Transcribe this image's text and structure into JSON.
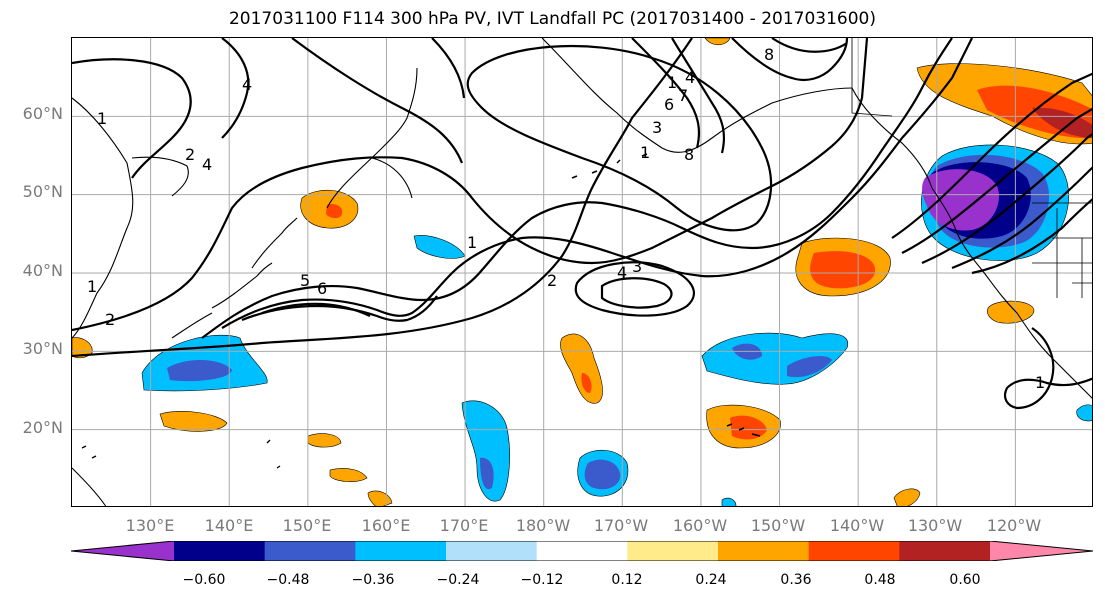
{
  "title": "2017031100 F114 300 hPa PV, IVT Landfall PC (2017031400 - 2017031600)",
  "lat_labels": [
    "60°N",
    "50°N",
    "40°N",
    "30°N",
    "20°N"
  ],
  "lon_labels": [
    "130°E",
    "140°E",
    "150°E",
    "160°E",
    "170°E",
    "180°W",
    "170°W",
    "160°W",
    "150°W",
    "140°W",
    "130°W",
    "120°W"
  ],
  "contour_labels": [
    "1",
    "1",
    "1",
    "1",
    "1",
    "1",
    "2",
    "2",
    "2",
    "3",
    "3",
    "4",
    "4",
    "4",
    "4",
    "5",
    "6",
    "6",
    "7",
    "8",
    "8"
  ],
  "colorbar": {
    "tick_labels": [
      "−0.60",
      "−0.48",
      "−0.36",
      "−0.24",
      "−0.12",
      "0.12",
      "0.24",
      "0.36",
      "0.48",
      "0.60"
    ],
    "colors": [
      "#9932CC",
      "#00008B",
      "#3B5BCC",
      "#00BFFF",
      "#B0E0FA",
      "#FFFFFF",
      "#FFEB8A",
      "#FFA500",
      "#FF4500",
      "#B22222",
      "#FF88AA"
    ]
  },
  "map_data": {
    "extent": {
      "lon_min": 120,
      "lon_max": 250,
      "lat_min": 10,
      "lat_max": 70
    },
    "grid_lons": [
      130,
      140,
      150,
      160,
      170,
      180,
      190,
      200,
      210,
      220,
      230,
      240
    ],
    "grid_lats": [
      20,
      30,
      40,
      50,
      60
    ],
    "pv_contour_levels": [
      1,
      2,
      3,
      4,
      5,
      6,
      7,
      8
    ],
    "shading_variable": "IVT Landfall PC",
    "shading_levels": [
      -0.6,
      -0.48,
      -0.36,
      -0.24,
      -0.12,
      0.12,
      0.24,
      0.36,
      0.48,
      0.6
    ]
  }
}
